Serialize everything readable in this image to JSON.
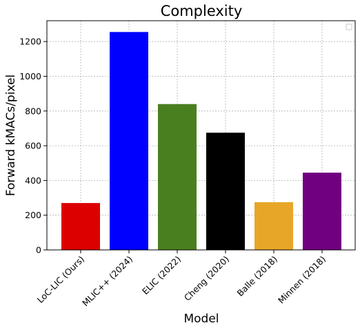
{
  "chart_data": {
    "type": "bar",
    "title": "Complexity",
    "xlabel": "Model",
    "ylabel": "Forward kMACs/pixel",
    "categories": [
      "LoC-LIC (Ours)",
      "MLIC++ (2024)",
      "ELIC (2022)",
      "Cheng (2020)",
      "Balle (2018)",
      "Minnen (2018)"
    ],
    "values": [
      270,
      1255,
      840,
      675,
      275,
      445
    ],
    "colors": [
      "#dd0000",
      "#0000ff",
      "#4a7f1f",
      "#000000",
      "#e8a628",
      "#700080"
    ],
    "ylim": [
      0,
      1320
    ],
    "yticks": [
      0,
      200,
      400,
      600,
      800,
      1000,
      1200
    ],
    "grid": true,
    "legend": "top-right",
    "legend_entries": []
  }
}
